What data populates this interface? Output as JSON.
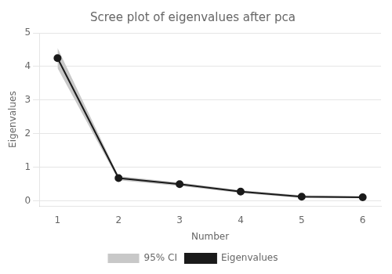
{
  "chart_data": {
    "type": "line",
    "title": "Scree plot of eigenvalues after pca",
    "xlabel": "Number",
    "ylabel": "Eigenvalues",
    "x": [
      1,
      2,
      3,
      4,
      5,
      6
    ],
    "series": [
      {
        "name": "Eigenvalues",
        "color": "#1a1a1a",
        "marker": "circle",
        "values": [
          4.25,
          0.68,
          0.5,
          0.28,
          0.13,
          0.11
        ]
      }
    ],
    "band": {
      "name": "95% CI",
      "color": "#c8c8c8",
      "upper": [
        4.55,
        0.74,
        0.55,
        0.32,
        0.17,
        0.14
      ],
      "lower": [
        3.95,
        0.62,
        0.45,
        0.24,
        0.09,
        0.08
      ]
    },
    "xlim": [
      0.7,
      6.3
    ],
    "xticks": [
      1,
      2,
      3,
      4,
      5,
      6
    ],
    "ylim": [
      -0.15,
      5.0
    ],
    "yticks": [
      0,
      1,
      2,
      3,
      4,
      5
    ],
    "grid": "y",
    "legend": "bottom"
  }
}
